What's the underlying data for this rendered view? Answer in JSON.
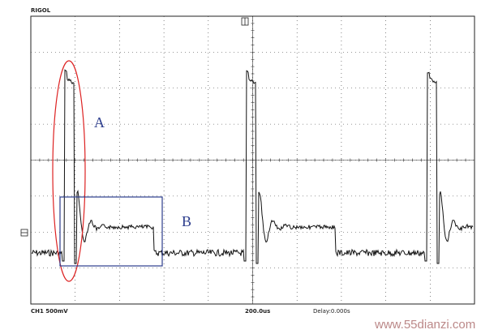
{
  "header": {
    "brand": "RIGOL"
  },
  "annotations": {
    "a": "A",
    "b": "B"
  },
  "status": {
    "channel": "CH1 500mV",
    "timebase": "200.0us",
    "delay": "Delay:0.000s"
  },
  "watermark": "www.55dianzi.com"
}
